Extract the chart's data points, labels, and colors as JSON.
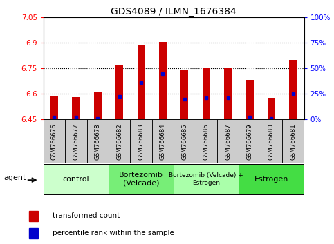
{
  "title": "GDS4089 / ILMN_1676384",
  "samples": [
    "GSM766676",
    "GSM766677",
    "GSM766678",
    "GSM766682",
    "GSM766683",
    "GSM766684",
    "GSM766685",
    "GSM766686",
    "GSM766687",
    "GSM766679",
    "GSM766680",
    "GSM766681"
  ],
  "bar_tops": [
    6.585,
    6.583,
    6.61,
    6.77,
    6.885,
    6.905,
    6.74,
    6.755,
    6.75,
    6.68,
    6.575,
    6.8
  ],
  "blue_vals": [
    6.462,
    6.462,
    6.456,
    6.585,
    6.665,
    6.72,
    6.568,
    6.578,
    6.578,
    6.465,
    6.456,
    6.6
  ],
  "bar_bottom": 6.45,
  "ylim": [
    6.45,
    7.05
  ],
  "yticks_left": [
    6.45,
    6.6,
    6.75,
    6.9,
    7.05
  ],
  "yticks_right_labels": [
    "0%",
    "25%",
    "50%",
    "75%",
    "100%"
  ],
  "ytick_right_positions": [
    6.45,
    6.6,
    6.75,
    6.9,
    7.05
  ],
  "dotted_lines": [
    6.9,
    6.75,
    6.6
  ],
  "bar_color": "#cc0000",
  "blue_color": "#0000cc",
  "bg_color": "#ffffff",
  "plot_bg_color": "#ffffff",
  "sample_box_color": "#cccccc",
  "agent_groups": [
    {
      "label": "control",
      "start": 0,
      "end": 2,
      "color": "#ccffcc"
    },
    {
      "label": "Bortezomib\n(Velcade)",
      "start": 3,
      "end": 5,
      "color": "#77ee77"
    },
    {
      "label": "Bortezomib (Velcade) +\nEstrogen",
      "start": 6,
      "end": 8,
      "color": "#aaffaa"
    },
    {
      "label": "Estrogen",
      "start": 9,
      "end": 11,
      "color": "#44dd44"
    }
  ],
  "legend_labels": [
    "transformed count",
    "percentile rank within the sample"
  ],
  "legend_colors": [
    "#cc0000",
    "#0000cc"
  ],
  "title_fontsize": 10,
  "tick_fontsize": 7.5,
  "bar_width": 0.35
}
